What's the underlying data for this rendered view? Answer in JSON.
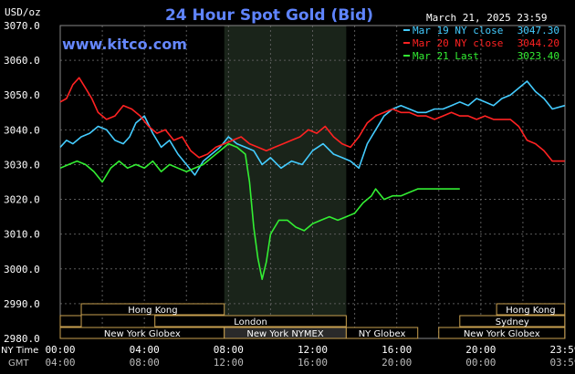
{
  "header": {
    "title": "24 Hour Spot Gold (Bid)",
    "unit": "USD/oz",
    "date": "March 21, 2025 23:59",
    "watermark": "www.kitco.com"
  },
  "chart_data": {
    "type": "line",
    "title": "24 Hour Spot Gold (Bid)",
    "ylabel": "USD/oz",
    "ylim": [
      2980,
      3070
    ],
    "yticks": [
      "3070.0",
      "3060.0",
      "3050.0",
      "3040.0",
      "3030.0",
      "3020.0",
      "3010.0",
      "3000.0",
      "2990.0",
      "2980.0"
    ],
    "xlim": [
      0,
      24
    ],
    "xtick_values": [
      0,
      4,
      8,
      12,
      16,
      20,
      24
    ],
    "x_ticks_ny": [
      "00:00",
      "04:00",
      "08:00",
      "12:00",
      "16:00",
      "20:00",
      "23:59"
    ],
    "x_ticks_gmt": [
      "04:00",
      "08:00",
      "12:00",
      "16:00",
      "20:00",
      "00:00",
      "03:59"
    ],
    "x_row_labels": {
      "ny": "NY Time",
      "gmt": "GMT"
    },
    "grid": true,
    "legend_position": "top-right",
    "shaded_hours": [
      7.8,
      13.6
    ],
    "series": [
      {
        "name": "Mar 19 NY close",
        "label_value": "3047.30",
        "color": "#44ccff",
        "x": [
          0,
          0.3,
          0.6,
          1.0,
          1.4,
          1.8,
          2.2,
          2.6,
          3.0,
          3.3,
          3.6,
          4.0,
          4.4,
          4.8,
          5.2,
          5.6,
          6.0,
          6.4,
          6.8,
          7.2,
          7.6,
          8.0,
          8.4,
          8.8,
          9.2,
          9.6,
          10.0,
          10.5,
          11.0,
          11.5,
          12.0,
          12.5,
          13.0,
          13.4,
          13.8,
          14.2,
          14.6,
          15.0,
          15.4,
          15.8,
          16.2,
          16.6,
          17.0,
          17.4,
          17.8,
          18.2,
          18.6,
          19.0,
          19.4,
          19.8,
          20.2,
          20.6,
          21.0,
          21.4,
          21.8,
          22.2,
          22.6,
          23.0,
          23.4,
          23.99
        ],
        "y": [
          3035,
          3037,
          3036,
          3038,
          3039,
          3041,
          3040,
          3037,
          3036,
          3038,
          3042,
          3044,
          3039,
          3035,
          3037,
          3033,
          3030,
          3027,
          3031,
          3033,
          3035,
          3038,
          3036,
          3035,
          3034,
          3030,
          3032,
          3029,
          3031,
          3030,
          3034,
          3036,
          3033,
          3032,
          3031,
          3029,
          3036,
          3040,
          3044,
          3046,
          3047,
          3046,
          3045,
          3045,
          3046,
          3046,
          3047,
          3048,
          3047,
          3049,
          3048,
          3047,
          3049,
          3050,
          3052,
          3054,
          3051,
          3049,
          3046,
          3047
        ]
      },
      {
        "name": "Mar 20 NY close",
        "label_value": "3044.20",
        "color": "#ff2222",
        "x": [
          0,
          0.3,
          0.6,
          0.9,
          1.2,
          1.5,
          1.8,
          2.2,
          2.6,
          3.0,
          3.4,
          3.8,
          4.2,
          4.6,
          5.0,
          5.4,
          5.8,
          6.2,
          6.6,
          7.0,
          7.4,
          7.8,
          8.2,
          8.6,
          9.0,
          9.4,
          9.8,
          10.2,
          10.6,
          11.0,
          11.4,
          11.8,
          12.2,
          12.6,
          13.0,
          13.4,
          13.8,
          14.2,
          14.6,
          15.0,
          15.4,
          15.8,
          16.2,
          16.6,
          17.0,
          17.4,
          17.8,
          18.2,
          18.6,
          19.0,
          19.4,
          19.8,
          20.2,
          20.6,
          21.0,
          21.4,
          21.8,
          22.2,
          22.6,
          23.0,
          23.4,
          23.99
        ],
        "y": [
          3048,
          3049,
          3053,
          3055,
          3052,
          3049,
          3045,
          3043,
          3044,
          3047,
          3046,
          3044,
          3041,
          3039,
          3040,
          3037,
          3038,
          3034,
          3032,
          3033,
          3035,
          3036,
          3037,
          3038,
          3036,
          3035,
          3034,
          3035,
          3036,
          3037,
          3038,
          3040,
          3039,
          3041,
          3038,
          3036,
          3035,
          3038,
          3042,
          3044,
          3045,
          3046,
          3045,
          3045,
          3044,
          3044,
          3043,
          3044,
          3045,
          3044,
          3044,
          3043,
          3044,
          3043,
          3043,
          3043,
          3041,
          3037,
          3036,
          3034,
          3031,
          3031
        ]
      },
      {
        "name": "Mar 21 Last",
        "label_value": "3023.40",
        "color": "#33ee33",
        "x": [
          0,
          0.4,
          0.8,
          1.2,
          1.6,
          2.0,
          2.4,
          2.8,
          3.2,
          3.6,
          4.0,
          4.4,
          4.8,
          5.2,
          5.6,
          6.0,
          6.4,
          6.8,
          7.2,
          7.6,
          8.0,
          8.4,
          8.8,
          9.0,
          9.2,
          9.4,
          9.6,
          9.8,
          10.0,
          10.4,
          10.8,
          11.2,
          11.6,
          12.0,
          12.4,
          12.8,
          13.2,
          13.6,
          14.0,
          14.4,
          14.8,
          15.0,
          15.4,
          15.8,
          16.2,
          16.6,
          17.0,
          17.4,
          17.8,
          18.2,
          18.6,
          19.0
        ],
        "y": [
          3029,
          3030,
          3031,
          3030,
          3028,
          3025,
          3029,
          3031,
          3029,
          3030,
          3029,
          3031,
          3028,
          3030,
          3029,
          3028,
          3029,
          3030,
          3032,
          3034,
          3036,
          3035,
          3033,
          3025,
          3012,
          3003,
          2997,
          3002,
          3010,
          3014,
          3014,
          3012,
          3011,
          3013,
          3014,
          3015,
          3014,
          3015,
          3016,
          3019,
          3021,
          3023,
          3020,
          3021,
          3021,
          3022,
          3023,
          3023,
          3023,
          3023,
          3023,
          3023
        ]
      }
    ],
    "sessions": [
      {
        "label": "Hong Kong",
        "start": 1.0,
        "end": 7.8,
        "row": 0,
        "highlight": false
      },
      {
        "label": "",
        "start": 0.0,
        "end": 1.0,
        "row": 1,
        "highlight": false
      },
      {
        "label": "London",
        "start": 4.5,
        "end": 13.6,
        "row": 1,
        "highlight": false
      },
      {
        "label": "New York Globex",
        "start": 0.0,
        "end": 7.8,
        "row": 2,
        "highlight": false
      },
      {
        "label": "New York NYMEX",
        "start": 7.8,
        "end": 13.6,
        "row": 2,
        "highlight": true
      },
      {
        "label": "NY Globex",
        "start": 13.6,
        "end": 17.0,
        "row": 2,
        "highlight": false
      },
      {
        "label": "Hong Kong",
        "start": 20.75,
        "end": 23.99,
        "row": 0,
        "highlight": false
      },
      {
        "label": "Sydney",
        "start": 19.0,
        "end": 23.99,
        "row": 1,
        "highlight": false
      },
      {
        "label": "New York Globex",
        "start": 18.0,
        "end": 23.99,
        "row": 2,
        "highlight": false
      }
    ]
  }
}
